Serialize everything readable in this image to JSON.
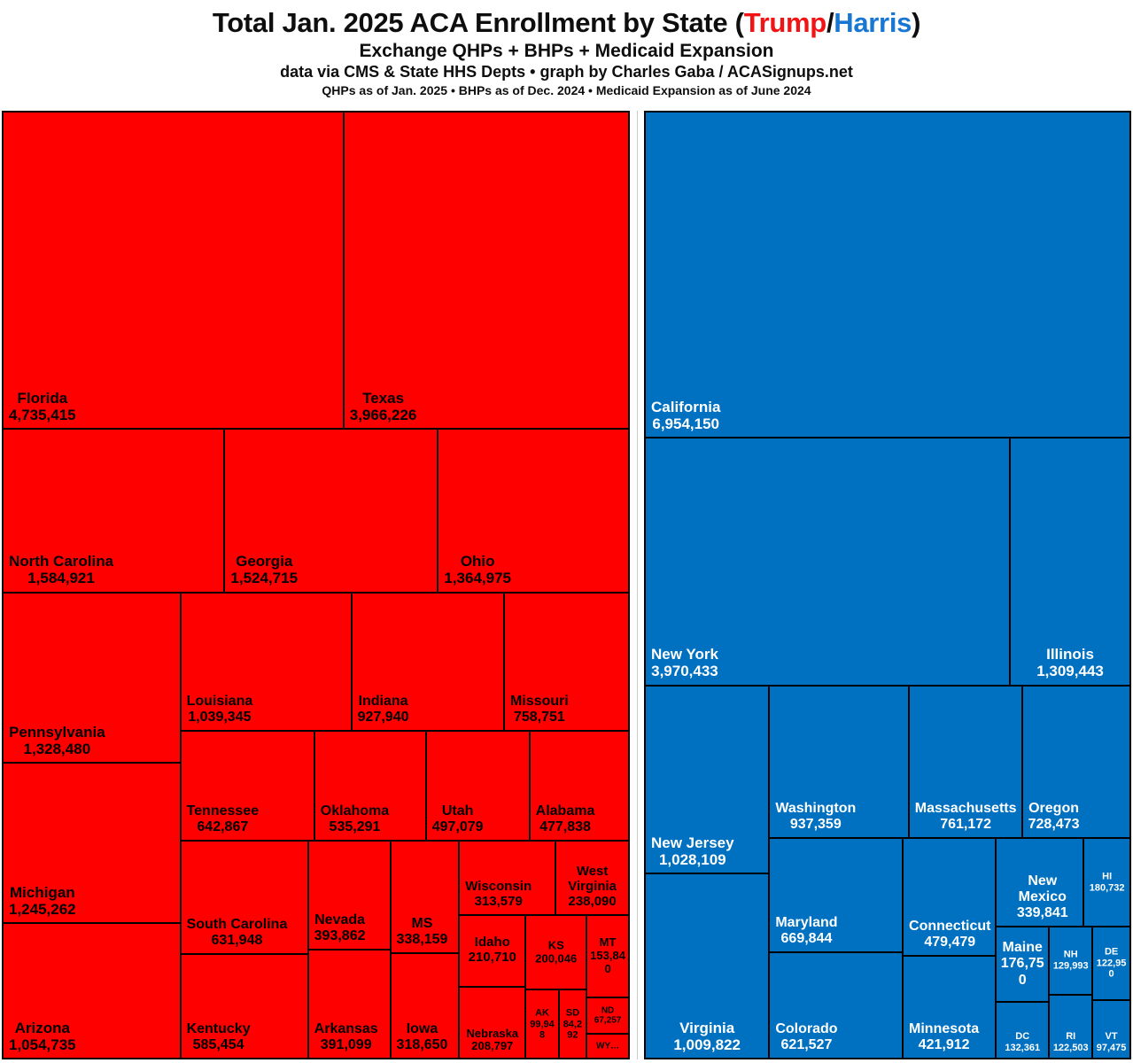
{
  "header": {
    "title_prefix": "Total Jan. 2025 ACA Enrollment by State (",
    "title_trump": "Trump",
    "title_slash": "/",
    "title_harris": "Harris",
    "title_suffix": ")",
    "subtitle": "Exchange QHPs + BHPs + Medicaid Expansion",
    "credit": "data via CMS & State HHS Depts • graph by Charles Gaba / ACASignups.net",
    "asof": "QHPs as of Jan. 2025 • BHPs as of Dec. 2024 • Medicaid Expansion as of June 2024"
  },
  "colors": {
    "trump_red": "#FF0000",
    "harris_blue": "#0070C0",
    "title_trump_red": "#F21414",
    "title_harris_blue": "#1877D2",
    "cell_border": "#000000",
    "label_on_red": "#000000",
    "label_on_blue": "#FFFFFF"
  },
  "chart_data": {
    "type": "treemap",
    "title": "Total Jan. 2025 ACA Enrollment by State (Trump/Harris)",
    "subtitle": "Exchange QHPs + BHPs + Medicaid Expansion",
    "unit": "enrollees",
    "layout_hint": "two side-by-side treemaps; left = Trump states (red), right = Harris states (blue); cell area proportional to enrollment",
    "groups": [
      {
        "name": "Trump states",
        "color": "#FF0000",
        "text_color": "#000000",
        "states": [
          {
            "id": "fl",
            "label": "Florida",
            "value": 4735415,
            "display": "4,735,415"
          },
          {
            "id": "tx",
            "label": "Texas",
            "value": 3966226,
            "display": "3,966,226"
          },
          {
            "id": "nc",
            "label": "North Carolina",
            "value": 1584921,
            "display": "1,584,921"
          },
          {
            "id": "ga",
            "label": "Georgia",
            "value": 1524715,
            "display": "1,524,715"
          },
          {
            "id": "oh",
            "label": "Ohio",
            "value": 1364975,
            "display": "1,364,975"
          },
          {
            "id": "pa",
            "label": "Pennsylvania",
            "value": 1328480,
            "display": "1,328,480"
          },
          {
            "id": "mi",
            "label": "Michigan",
            "value": 1245262,
            "display": "1,245,262"
          },
          {
            "id": "az",
            "label": "Arizona",
            "value": 1054735,
            "display": "1,054,735"
          },
          {
            "id": "la",
            "label": "Louisiana",
            "value": 1039345,
            "display": "1,039,345"
          },
          {
            "id": "in",
            "label": "Indiana",
            "value": 927940,
            "display": "927,940"
          },
          {
            "id": "mo",
            "label": "Missouri",
            "value": 758751,
            "display": "758,751"
          },
          {
            "id": "tn",
            "label": "Tennessee",
            "value": 642867,
            "display": "642,867"
          },
          {
            "id": "sc",
            "label": "South Carolina",
            "value": 631948,
            "display": "631,948"
          },
          {
            "id": "ky",
            "label": "Kentucky",
            "value": 585454,
            "display": "585,454"
          },
          {
            "id": "ok",
            "label": "Oklahoma",
            "value": 535291,
            "display": "535,291"
          },
          {
            "id": "ut",
            "label": "Utah",
            "value": 497079,
            "display": "497,079"
          },
          {
            "id": "al",
            "label": "Alabama",
            "value": 477838,
            "display": "477,838"
          },
          {
            "id": "nv",
            "label": "Nevada",
            "value": 393862,
            "display": "393,862"
          },
          {
            "id": "ar",
            "label": "Arkansas",
            "value": 391099,
            "display": "391,099"
          },
          {
            "id": "ms",
            "label": "MS",
            "value": 338159,
            "display": "338,159"
          },
          {
            "id": "ia",
            "label": "Iowa",
            "value": 318650,
            "display": "318,650"
          },
          {
            "id": "wi",
            "label": "Wisconsin",
            "value": 313579,
            "display": "313,579"
          },
          {
            "id": "wv",
            "label": "West Virginia",
            "value": 238090,
            "display": "238,090"
          },
          {
            "id": "id",
            "label": "Idaho",
            "value": 210710,
            "display": "210,710"
          },
          {
            "id": "ne",
            "label": "Nebraska",
            "value": 208797,
            "display": "208,797"
          },
          {
            "id": "ks",
            "label": "KS",
            "value": 200046,
            "display": "200,046"
          },
          {
            "id": "mt",
            "label": "MT",
            "value": 153840,
            "display": "153,840"
          },
          {
            "id": "ak",
            "label": "AK",
            "value": 99948,
            "display": "99,948"
          },
          {
            "id": "sd",
            "label": "SD",
            "value": 84292,
            "display": "84,292"
          },
          {
            "id": "nd",
            "label": "ND",
            "value": 67257,
            "display": "67,257"
          },
          {
            "id": "wy",
            "label": "WY…",
            "value": null,
            "display": ""
          }
        ]
      },
      {
        "name": "Harris states",
        "color": "#0070C0",
        "text_color": "#FFFFFF",
        "states": [
          {
            "id": "ca",
            "label": "California",
            "value": 6954150,
            "display": "6,954,150"
          },
          {
            "id": "ny",
            "label": "New York",
            "value": 3970433,
            "display": "3,970,433"
          },
          {
            "id": "il",
            "label": "Illinois",
            "value": 1309443,
            "display": "1,309,443"
          },
          {
            "id": "nj",
            "label": "New Jersey",
            "value": 1028109,
            "display": "1,028,109"
          },
          {
            "id": "va",
            "label": "Virginia",
            "value": 1009822,
            "display": "1,009,822"
          },
          {
            "id": "wa",
            "label": "Washington",
            "value": 937359,
            "display": "937,359"
          },
          {
            "id": "ma",
            "label": "Massachusetts",
            "value": 761172,
            "display": "761,172"
          },
          {
            "id": "or",
            "label": "Oregon",
            "value": 728473,
            "display": "728,473"
          },
          {
            "id": "md",
            "label": "Maryland",
            "value": 669844,
            "display": "669,844"
          },
          {
            "id": "co",
            "label": "Colorado",
            "value": 621527,
            "display": "621,527"
          },
          {
            "id": "ct",
            "label": "Connecticut",
            "value": 479479,
            "display": "479,479"
          },
          {
            "id": "mn",
            "label": "Minnesota",
            "value": 421912,
            "display": "421,912"
          },
          {
            "id": "nm",
            "label": "New Mexico",
            "value": 339841,
            "display": "339,841"
          },
          {
            "id": "hi",
            "label": "HI",
            "value": 180732,
            "display": "180,732"
          },
          {
            "id": "me",
            "label": "Maine",
            "value": 176750,
            "display": "176,750"
          },
          {
            "id": "dc",
            "label": "DC",
            "value": 132361,
            "display": "132,361"
          },
          {
            "id": "nh",
            "label": "NH",
            "value": 129993,
            "display": "129,993"
          },
          {
            "id": "de",
            "label": "DE",
            "value": 122950,
            "display": "122,950"
          },
          {
            "id": "ri",
            "label": "RI",
            "value": 122503,
            "display": "122,503"
          },
          {
            "id": "vt",
            "label": "VT",
            "value": 97475,
            "display": "97,475"
          }
        ]
      }
    ]
  }
}
